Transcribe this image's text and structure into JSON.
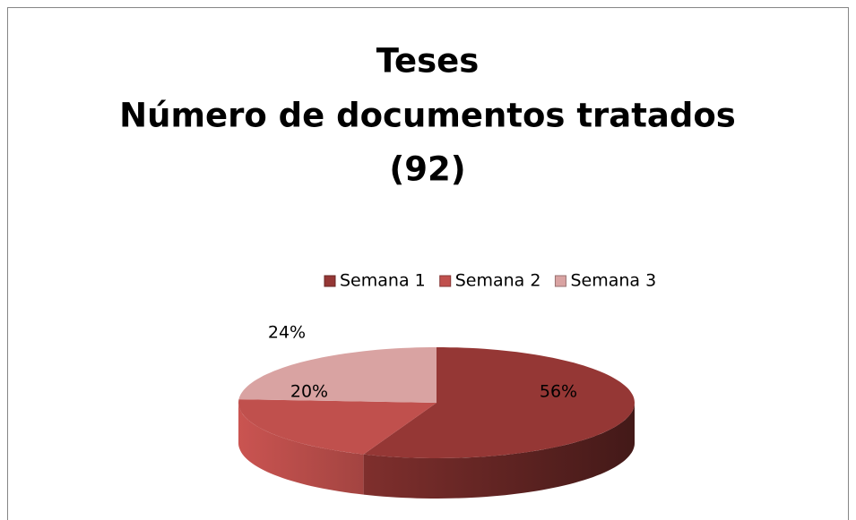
{
  "chart_data": {
    "type": "pie",
    "title": [
      "Teses",
      "Número de documentos tratados",
      "(92)"
    ],
    "categories": [
      "Semana 1",
      "Semana 2",
      "Semana 3"
    ],
    "values": [
      56,
      20,
      24
    ],
    "value_labels": [
      "56%",
      "20%",
      "24%"
    ],
    "colors": [
      "#953735",
      "#c0504d",
      "#d9a3a2"
    ],
    "legend": "top"
  }
}
